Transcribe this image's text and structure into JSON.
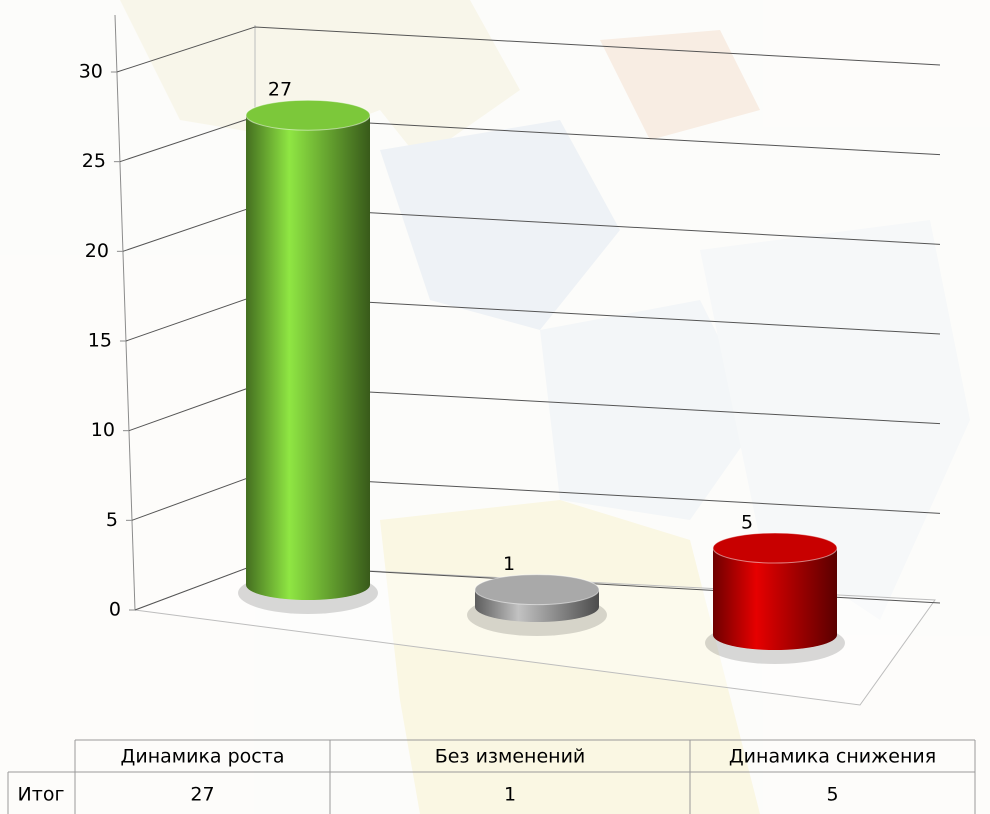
{
  "chart_data": {
    "type": "bar3d",
    "categories": [
      "Динамика роста",
      "Без изменений",
      "Динамика снижения"
    ],
    "series": [
      {
        "name": "Итог",
        "values": [
          27,
          1,
          5
        ],
        "colors": [
          "#7cc83a",
          "#a9a9a9",
          "#c80000"
        ]
      }
    ],
    "ylim": [
      0,
      30
    ],
    "yticks": [
      0,
      5,
      10,
      15,
      20,
      25,
      30
    ],
    "grid": true
  }
}
